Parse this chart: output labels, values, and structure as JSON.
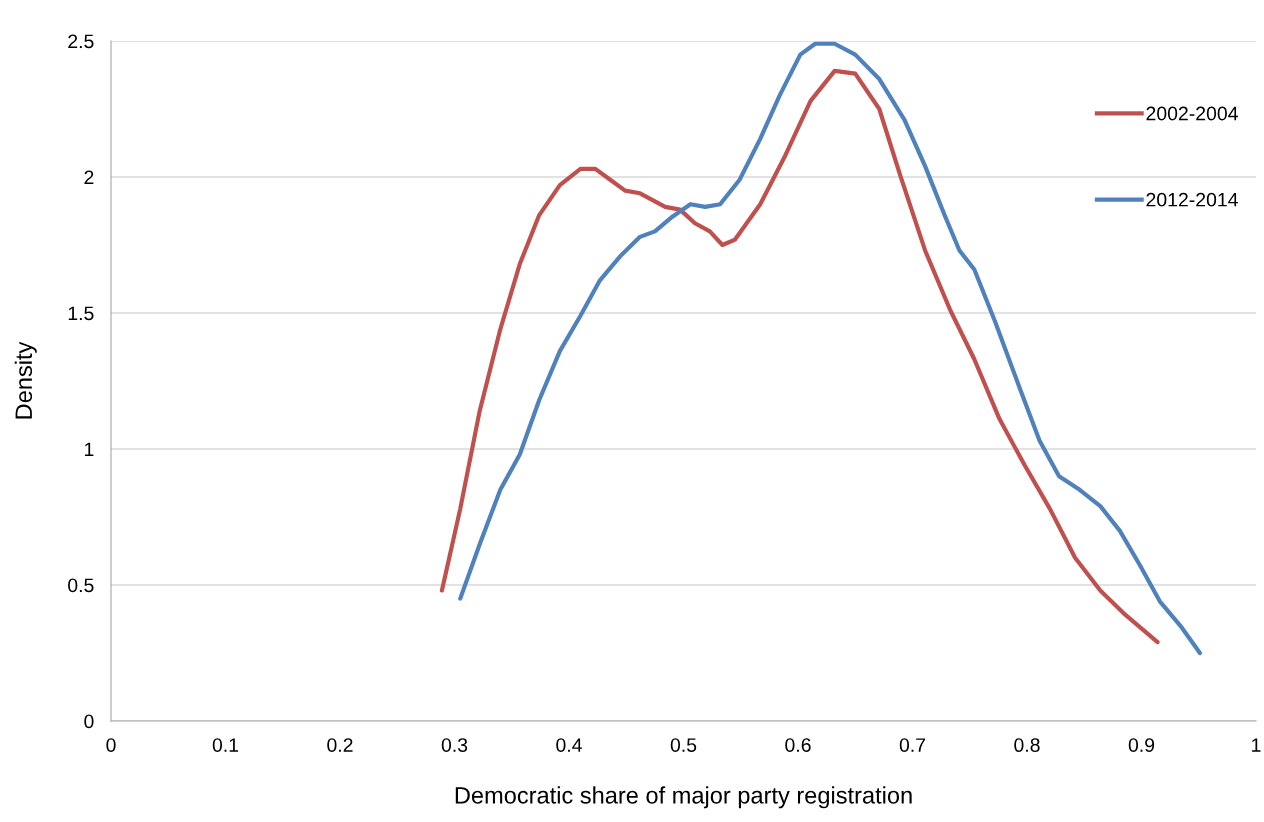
{
  "chart_data": {
    "type": "line",
    "xlabel": "Democratic share of major party registration",
    "ylabel": "Density",
    "xlim": [
      0,
      1
    ],
    "xticks": [
      0,
      0.1,
      0.2,
      0.3,
      0.4,
      0.5,
      0.6,
      0.7,
      0.8,
      0.9,
      1
    ],
    "ylim": [
      0,
      2.5
    ],
    "yticks": [
      0,
      0.5,
      1,
      1.5,
      2,
      2.5
    ],
    "grid": "y",
    "legend": "right",
    "marker": "none",
    "line_style": "solid",
    "series": [
      {
        "name": "2002-2004",
        "color": "#c0504d",
        "x": [
          0.289,
          0.305,
          0.322,
          0.34,
          0.357,
          0.374,
          0.392,
          0.41,
          0.423,
          0.436,
          0.449,
          0.462,
          0.484,
          0.497,
          0.51,
          0.523,
          0.534,
          0.545,
          0.567,
          0.589,
          0.611,
          0.632,
          0.65,
          0.671,
          0.689,
          0.711,
          0.733,
          0.754,
          0.776,
          0.798,
          0.82,
          0.842,
          0.864,
          0.886,
          0.914
        ],
        "values": [
          0.48,
          0.78,
          1.14,
          1.44,
          1.68,
          1.86,
          1.97,
          2.03,
          2.03,
          1.99,
          1.95,
          1.94,
          1.89,
          1.88,
          1.83,
          1.8,
          1.75,
          1.77,
          1.9,
          2.08,
          2.28,
          2.39,
          2.38,
          2.25,
          2.01,
          1.73,
          1.51,
          1.33,
          1.11,
          0.94,
          0.78,
          0.6,
          0.48,
          0.39,
          0.29
        ]
      },
      {
        "name": "2012-2014",
        "color": "#4f81bd",
        "x": [
          0.305,
          0.322,
          0.34,
          0.357,
          0.374,
          0.392,
          0.41,
          0.427,
          0.445,
          0.462,
          0.475,
          0.489,
          0.506,
          0.519,
          0.532,
          0.549,
          0.567,
          0.584,
          0.602,
          0.615,
          0.632,
          0.65,
          0.671,
          0.693,
          0.711,
          0.728,
          0.741,
          0.754,
          0.772,
          0.794,
          0.811,
          0.828,
          0.846,
          0.864,
          0.881,
          0.899,
          0.916,
          0.934,
          0.951
        ],
        "values": [
          0.45,
          0.65,
          0.85,
          0.98,
          1.18,
          1.36,
          1.49,
          1.62,
          1.71,
          1.78,
          1.8,
          1.85,
          1.9,
          1.89,
          1.9,
          1.99,
          2.14,
          2.3,
          2.45,
          2.49,
          2.49,
          2.45,
          2.36,
          2.21,
          2.04,
          1.86,
          1.73,
          1.66,
          1.47,
          1.22,
          1.03,
          0.9,
          0.85,
          0.79,
          0.7,
          0.57,
          0.44,
          0.35,
          0.25
        ]
      }
    ]
  }
}
